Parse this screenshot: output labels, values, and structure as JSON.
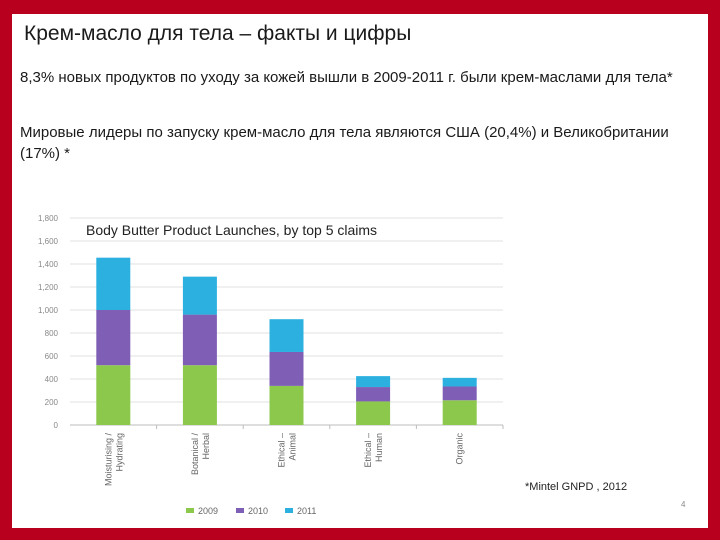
{
  "slide": {
    "title": "Крем-масло для тела – факты и цифры",
    "paragraph1": "8,3% новых продуктов по уходу за кожей вышли в 2009-2011 г. были крем-маслами для тела*",
    "paragraph2": "Мировые лидеры по запуску крем-масло для тела являются США (20,4%) и Великобритании (17%) *",
    "source": "*Mintel GNPD , 2012",
    "page_number": "4"
  },
  "colors": {
    "background": "#b8001e",
    "series_2009": "#8cc84b",
    "series_2010": "#7f5fb5",
    "series_2011": "#2bb0e0",
    "grid": "#e2e2e2",
    "axis_text": "#888888"
  },
  "chart_data": {
    "type": "bar",
    "stacked": true,
    "title": "Body Butter Product Launches, by top 5 claims",
    "categories": [
      "Moisturising / Hydrating",
      "Botanical / Herbal",
      "Ethical - Animal",
      "Ethical - Human",
      "Organic"
    ],
    "series": [
      {
        "name": "2009",
        "values": [
          520,
          520,
          340,
          205,
          215
        ]
      },
      {
        "name": "2010",
        "values": [
          480,
          440,
          295,
          125,
          120
        ]
      },
      {
        "name": "2011",
        "values": [
          455,
          330,
          285,
          95,
          75
        ]
      }
    ],
    "yticks": [
      "0",
      "200",
      "400",
      "600",
      "800",
      "1,000",
      "1,200",
      "1,400",
      "1,600",
      "1,800"
    ],
    "ylim": [
      0,
      1800
    ],
    "legend_position": "bottom"
  }
}
